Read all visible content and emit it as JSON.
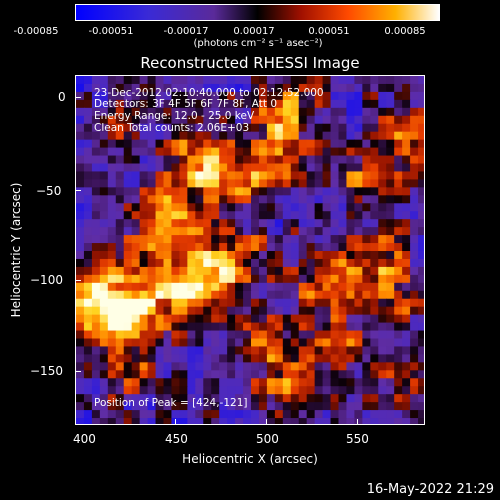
{
  "colorbar": {
    "ticks": [
      "-0.00085",
      "-0.00051",
      "-0.00017",
      "0.00017",
      "0.00051",
      "0.00085"
    ],
    "units": "(photons cm⁻² s⁻¹ asec⁻²)"
  },
  "title": "Reconstructed RHESSI Image",
  "annotations": {
    "time": "23-Dec-2012 02:10:40.000 to 02:12:52.000",
    "detectors": "Detectors: 3F 4F 5F 6F 7F 8F, Att 0",
    "energy": "Energy Range: 12.0 - 25.0 keV",
    "clean": "Clean     Total counts: 2.06E+03",
    "peak": "Position of Peak = [424,-121]"
  },
  "x_axis": {
    "label": "Heliocentric X (arcsec)",
    "ticks": [
      "400",
      "450",
      "500",
      "550"
    ]
  },
  "y_axis": {
    "label": "Heliocentric Y (arcsec)",
    "ticks": [
      "0",
      "−50",
      "−100",
      "−150"
    ]
  },
  "timestamp": "16-May-2022 21:29",
  "colors": {
    "background": "#000000",
    "colormap": [
      "#0000ff",
      "#6a3fc0",
      "#4b1f6e",
      "#000000",
      "#b01e00",
      "#ff6a00",
      "#ffd000",
      "#ffffff"
    ]
  }
}
